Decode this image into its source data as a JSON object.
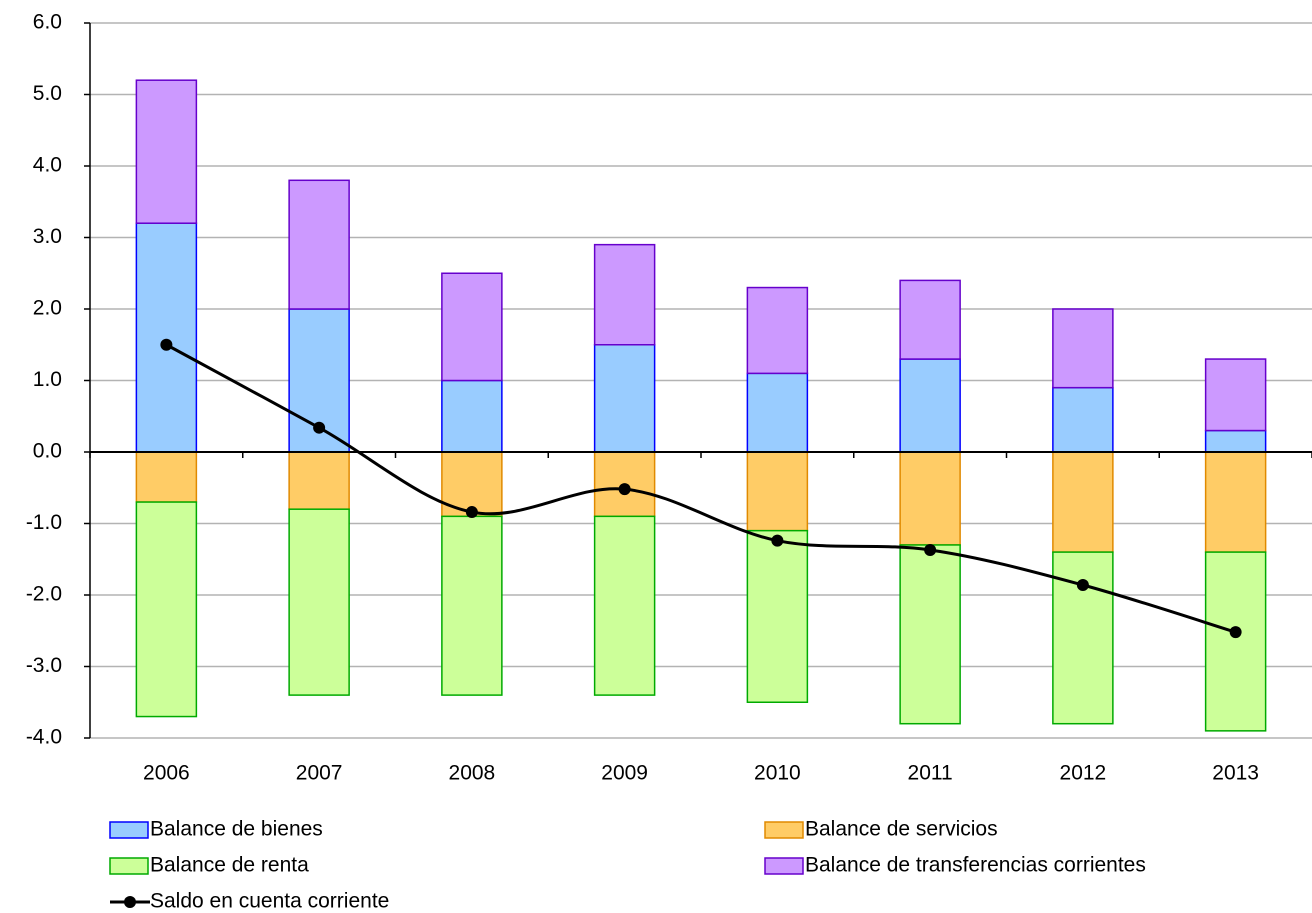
{
  "chart_data": {
    "type": "bar",
    "categories": [
      "2006",
      "2007",
      "2008",
      "2009",
      "2010",
      "2011",
      "2012",
      "2013"
    ],
    "series": [
      {
        "name": "Balance de bienes",
        "type": "bar",
        "color": "#99ccff",
        "stroke": "#0000ff",
        "values": [
          3.2,
          2.0,
          1.0,
          1.5,
          1.1,
          1.3,
          0.9,
          0.3
        ]
      },
      {
        "name": "Balance de servicios",
        "type": "bar",
        "color": "#ffcc66",
        "stroke": "#e08a00",
        "values": [
          -0.7,
          -0.8,
          -0.9,
          -0.9,
          -1.1,
          -1.3,
          -1.4,
          -1.4
        ]
      },
      {
        "name": "Balance de renta",
        "type": "bar",
        "color": "#ccff99",
        "stroke": "#00aa00",
        "values": [
          -3.0,
          -2.6,
          -2.5,
          -2.5,
          -2.4,
          -2.5,
          -2.4,
          -2.5
        ]
      },
      {
        "name": "Balance de transferencias corrientes",
        "type": "bar",
        "color": "#cc99ff",
        "stroke": "#6600cc",
        "values": [
          2.0,
          1.8,
          1.5,
          1.4,
          1.2,
          1.1,
          1.1,
          1.0
        ]
      },
      {
        "name": "Saldo en cuenta corriente",
        "type": "line",
        "color": "#000000",
        "values": [
          1.5,
          0.34,
          -0.84,
          -0.52,
          -1.24,
          -1.37,
          -1.86,
          -2.52
        ]
      }
    ],
    "ylim": [
      -4.0,
      6.0
    ],
    "yticks": [
      {
        "value": -4.0,
        "label": "-4.0"
      },
      {
        "value": -3.0,
        "label": "-3.0"
      },
      {
        "value": -2.0,
        "label": "-2.0"
      },
      {
        "value": -1.0,
        "label": "-1.0"
      },
      {
        "value": 0,
        "label": "0.0"
      },
      {
        "value": 1.0,
        "label": "1.0"
      },
      {
        "value": 2.0,
        "label": "2.0"
      },
      {
        "value": 3.0,
        "label": "3.0"
      },
      {
        "value": 4.0,
        "label": "4.0"
      },
      {
        "value": 5.0,
        "label": "5.0"
      },
      {
        "value": 6.0,
        "label": "6.0"
      }
    ],
    "grid": true,
    "legend": "bottom"
  }
}
